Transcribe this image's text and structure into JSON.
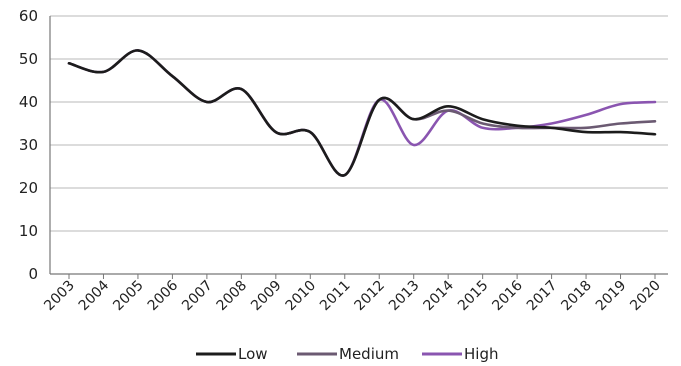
{
  "chart_data": {
    "type": "line",
    "title": "",
    "xlabel": "",
    "ylabel": "",
    "categories": [
      "2003",
      "2004",
      "2005",
      "2006",
      "2007",
      "2008",
      "2009",
      "2010",
      "2011",
      "2012",
      "2013",
      "2014",
      "2015",
      "2016",
      "2017",
      "2018",
      "2019",
      "2020"
    ],
    "ylim": [
      0,
      60
    ],
    "yticks": [
      0,
      10,
      20,
      30,
      40,
      50,
      60
    ],
    "grid": true,
    "legend_position": "bottom",
    "series": [
      {
        "name": "Low",
        "color": "#1c1c1c",
        "values": [
          49,
          47,
          52,
          46,
          40,
          43,
          33,
          33,
          23,
          40.5,
          36,
          39,
          36,
          34.5,
          34,
          33,
          33,
          32.5
        ]
      },
      {
        "name": "Medium",
        "color": "#6b5a72",
        "values": [
          49,
          47,
          52,
          46,
          40,
          43,
          33,
          33,
          23,
          40.5,
          36,
          38,
          35,
          34,
          34,
          34,
          35,
          35.5
        ]
      },
      {
        "name": "High",
        "color": "#8a55b0",
        "values": [
          49,
          47,
          52,
          46,
          40,
          43,
          33,
          33,
          23,
          40.5,
          30,
          38,
          34,
          34,
          35,
          37,
          39.5,
          40
        ]
      }
    ]
  }
}
